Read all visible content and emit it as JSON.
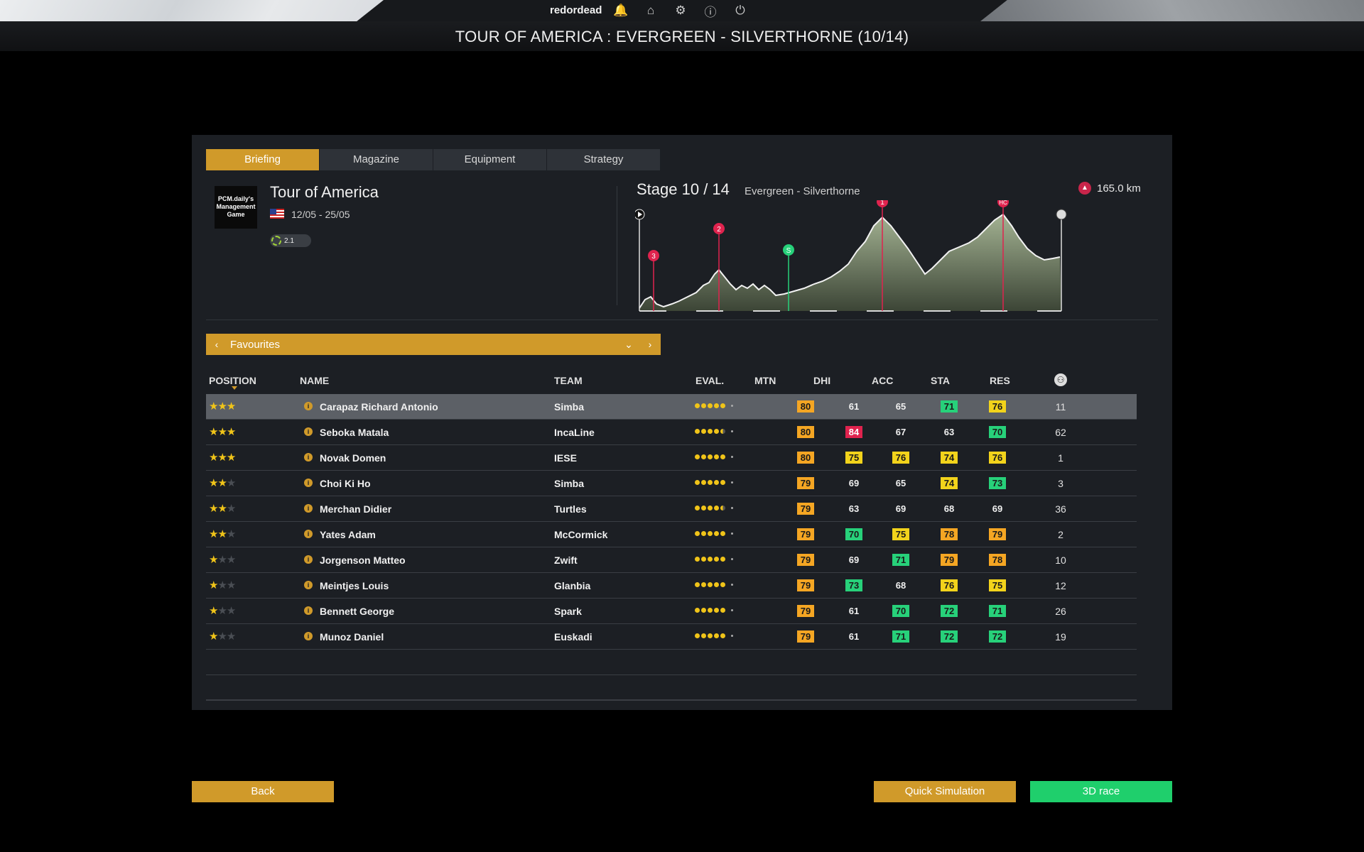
{
  "header": {
    "username": "redordead",
    "title": "TOUR OF AMERICA : EVERGREEN - SILVERTHORNE (10/14)",
    "icons": [
      "bell-icon",
      "home-icon",
      "gear-icon",
      "info-icon",
      "power-icon"
    ]
  },
  "tabs": [
    {
      "label": "Briefing",
      "active": true
    },
    {
      "label": "Magazine",
      "active": false
    },
    {
      "label": "Equipment",
      "active": false
    },
    {
      "label": "Strategy",
      "active": false
    }
  ],
  "race": {
    "logo_text": "PCM.daily's Management Game",
    "name": "Tour of America",
    "dates": "12/05 - 25/05",
    "class": "2.1"
  },
  "stage": {
    "title": "Stage 10 / 14",
    "route": "Evergreen - Silverthorne",
    "distance": "165.0 km",
    "climb_markers": [
      "3",
      "2",
      "S",
      "1",
      "HC"
    ]
  },
  "selector": {
    "label": "Favourites"
  },
  "table": {
    "headers": {
      "position": "POSITION",
      "name": "NAME",
      "team": "TEAM",
      "eval": "EVAL.",
      "mtn": "MTN",
      "dhi": "DHI",
      "acc": "ACC",
      "sta": "STA",
      "res": "RES"
    },
    "rows": [
      {
        "stars": 3,
        "name": "Carapaz Richard Antonio",
        "team": "Simba",
        "eval": 5,
        "mtn": "80",
        "mtn_c": "org",
        "dhi": "61",
        "dhi_c": "",
        "acc": "65",
        "acc_c": "",
        "sta": "71",
        "sta_c": "grn",
        "res": "76",
        "res_c": "yel",
        "pos": "11"
      },
      {
        "stars": 3,
        "name": "Seboka Matala",
        "team": "IncaLine",
        "eval": 4.5,
        "mtn": "80",
        "mtn_c": "org",
        "dhi": "84",
        "dhi_c": "red",
        "acc": "67",
        "acc_c": "",
        "sta": "63",
        "sta_c": "",
        "res": "70",
        "res_c": "grn",
        "pos": "62"
      },
      {
        "stars": 3,
        "name": "Novak Domen",
        "team": "IESE",
        "eval": 5,
        "mtn": "80",
        "mtn_c": "org",
        "dhi": "75",
        "dhi_c": "yel",
        "acc": "76",
        "acc_c": "yel",
        "sta": "74",
        "sta_c": "yel",
        "res": "76",
        "res_c": "yel",
        "pos": "1"
      },
      {
        "stars": 2,
        "name": "Choi Ki Ho",
        "team": "Simba",
        "eval": 5,
        "mtn": "79",
        "mtn_c": "org",
        "dhi": "69",
        "dhi_c": "",
        "acc": "65",
        "acc_c": "",
        "sta": "74",
        "sta_c": "yel",
        "res": "73",
        "res_c": "grn",
        "pos": "3"
      },
      {
        "stars": 2,
        "name": "Merchan Didier",
        "team": "Turtles",
        "eval": 4.5,
        "mtn": "79",
        "mtn_c": "org",
        "dhi": "63",
        "dhi_c": "",
        "acc": "69",
        "acc_c": "",
        "sta": "68",
        "sta_c": "",
        "res": "69",
        "res_c": "",
        "pos": "36"
      },
      {
        "stars": 2,
        "name": "Yates Adam",
        "team": "McCormick",
        "eval": 5,
        "mtn": "79",
        "mtn_c": "org",
        "dhi": "70",
        "dhi_c": "grn",
        "acc": "75",
        "acc_c": "yel",
        "sta": "78",
        "sta_c": "org",
        "res": "79",
        "res_c": "org",
        "pos": "2"
      },
      {
        "stars": 1,
        "name": "Jorgenson Matteo",
        "team": "Zwift",
        "eval": 5,
        "mtn": "79",
        "mtn_c": "org",
        "dhi": "69",
        "dhi_c": "",
        "acc": "71",
        "acc_c": "grn",
        "sta": "79",
        "sta_c": "org",
        "res": "78",
        "res_c": "org",
        "pos": "10"
      },
      {
        "stars": 1,
        "name": "Meintjes Louis",
        "team": "Glanbia",
        "eval": 5,
        "mtn": "79",
        "mtn_c": "org",
        "dhi": "73",
        "dhi_c": "grn",
        "acc": "68",
        "acc_c": "",
        "sta": "76",
        "sta_c": "yel",
        "res": "75",
        "res_c": "yel",
        "pos": "12"
      },
      {
        "stars": 1,
        "name": "Bennett George",
        "team": "Spark",
        "eval": 5,
        "mtn": "79",
        "mtn_c": "org",
        "dhi": "61",
        "dhi_c": "",
        "acc": "70",
        "acc_c": "grn",
        "sta": "72",
        "sta_c": "grn",
        "res": "71",
        "res_c": "grn",
        "pos": "26"
      },
      {
        "stars": 1,
        "name": "Munoz Daniel",
        "team": "Euskadi",
        "eval": 5,
        "mtn": "79",
        "mtn_c": "org",
        "dhi": "61",
        "dhi_c": "",
        "acc": "71",
        "acc_c": "grn",
        "sta": "72",
        "sta_c": "grn",
        "res": "72",
        "res_c": "grn",
        "pos": "19"
      }
    ]
  },
  "buttons": {
    "back": "Back",
    "quick": "Quick Simulation",
    "race3d": "3D race"
  },
  "colors": {
    "accent": "#d09a2a",
    "go": "#1fcf6c",
    "panel": "#1c1f24"
  }
}
